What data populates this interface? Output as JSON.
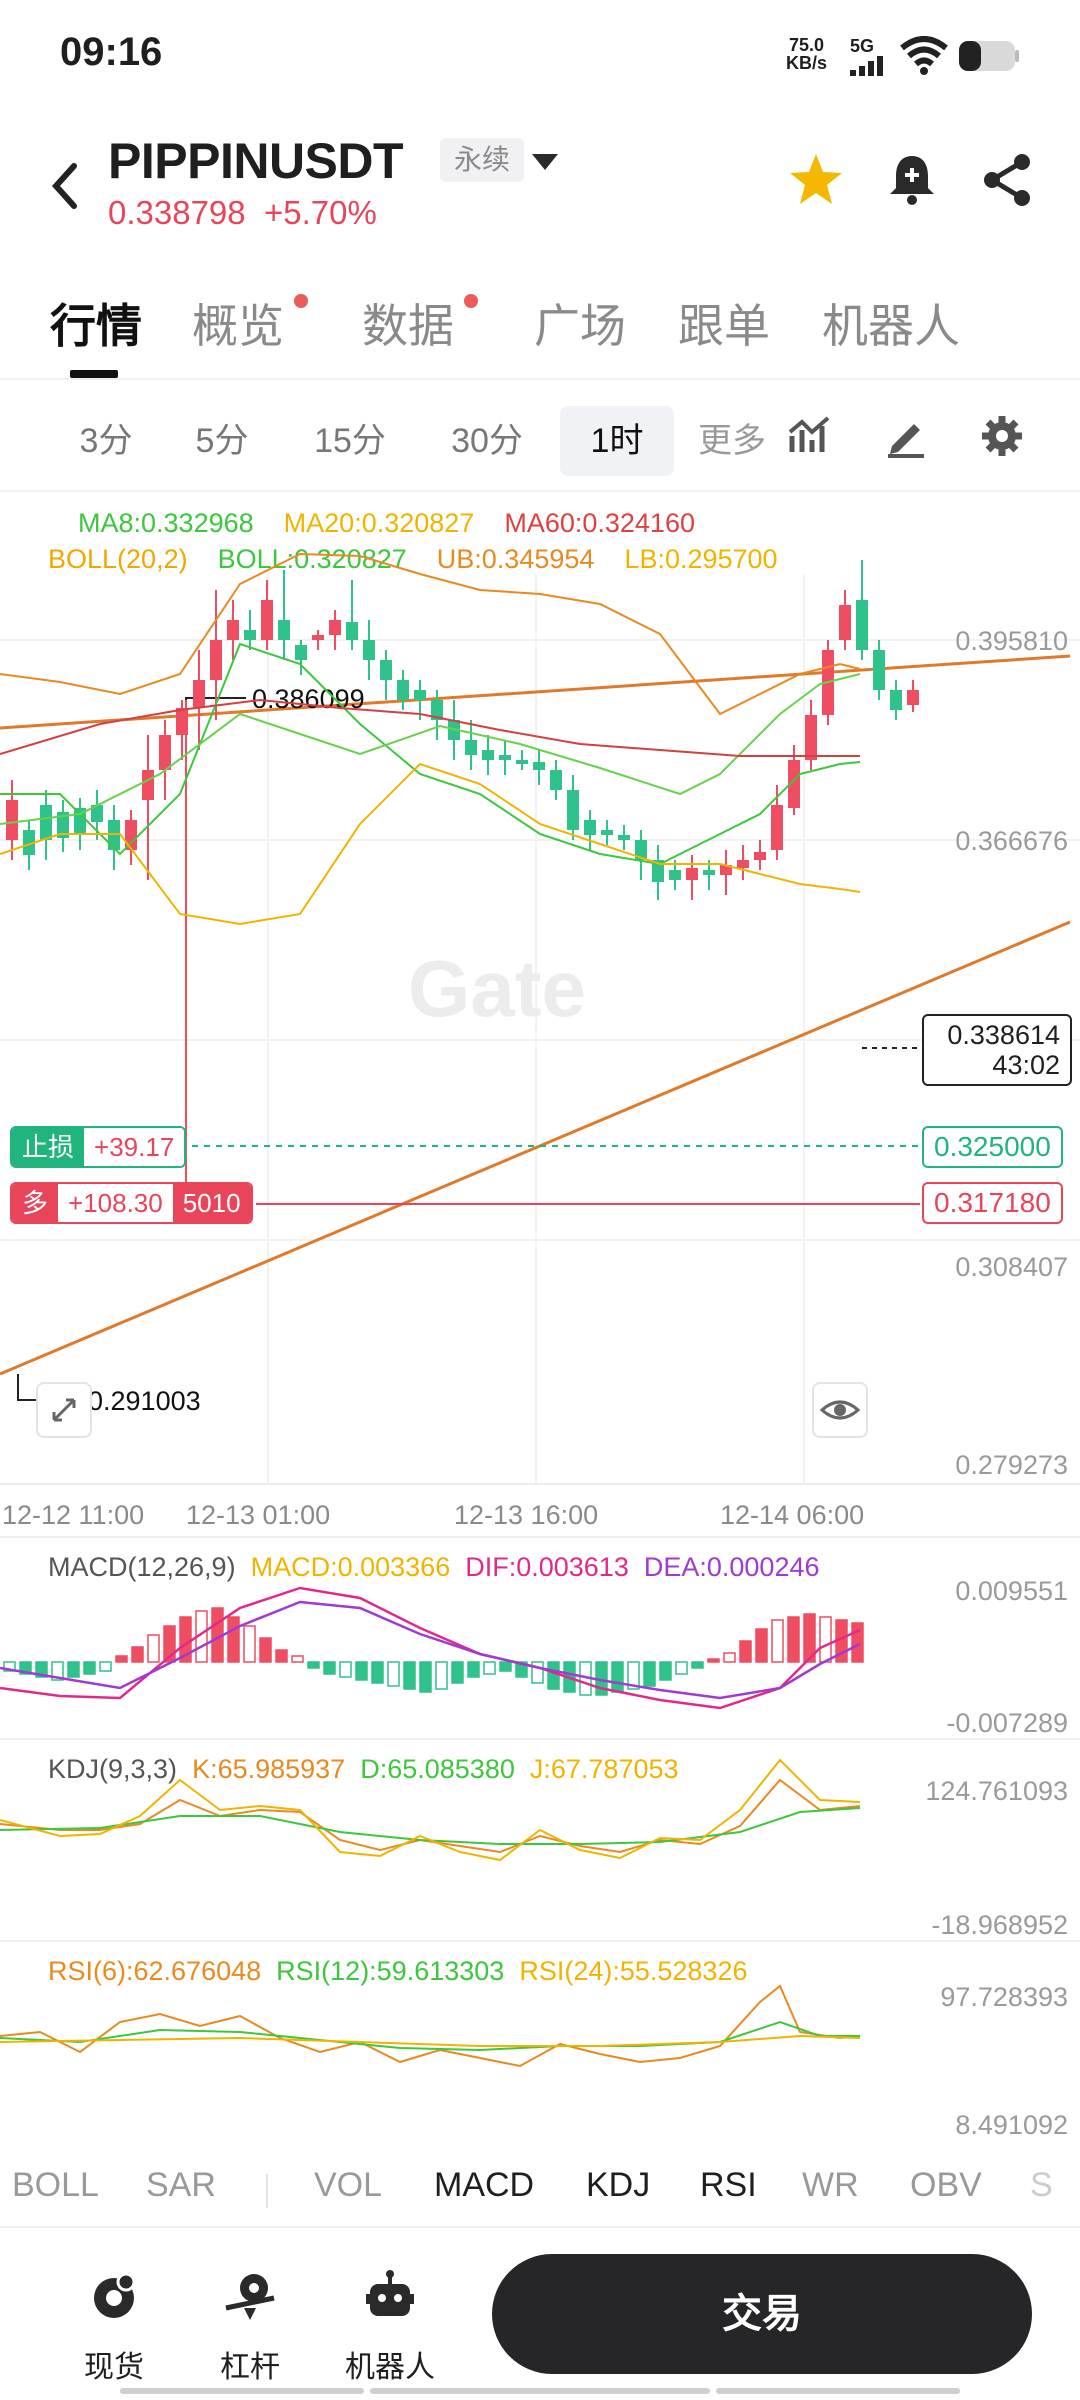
{
  "status": {
    "time": "09:16",
    "speed_value": "75.0",
    "speed_unit": "KB/s",
    "network": "5G"
  },
  "header": {
    "symbol": "PIPPINUSDT",
    "contract_type": "永续",
    "last_price": "0.338798",
    "change_percent": "+5.70%",
    "colors": {
      "up": "#e8455a",
      "down": "#20b57c",
      "star": "#f5b800"
    }
  },
  "tabs": [
    {
      "label": "行情",
      "active": true,
      "badge": false
    },
    {
      "label": "概览",
      "active": false,
      "badge": true
    },
    {
      "label": "数据",
      "active": false,
      "badge": true
    },
    {
      "label": "广场",
      "active": false,
      "badge": false
    },
    {
      "label": "跟单",
      "active": false,
      "badge": false
    },
    {
      "label": "机器人",
      "active": false,
      "badge": false
    }
  ],
  "timeframes": [
    {
      "label": "3分",
      "active": false
    },
    {
      "label": "5分",
      "active": false
    },
    {
      "label": "15分",
      "active": false
    },
    {
      "label": "30分",
      "active": false
    },
    {
      "label": "1时",
      "active": true
    },
    {
      "label": "更多",
      "active": false
    }
  ],
  "main_legend": {
    "ma8": "MA8:0.332968",
    "ma20": "MA20:0.320827",
    "ma60": "MA60:0.324160",
    "boll_name": "BOLL(20,2)",
    "boll": "BOLL:0.320827",
    "ub": "UB:0.345954",
    "lb": "LB:0.295700"
  },
  "price_axis": [
    "0.395810",
    "0.366676",
    "0.308407",
    "0.279273"
  ],
  "high_label": "0.386099",
  "low_label": "0.291003",
  "time_axis": [
    "12-12 11:00",
    "12-13 01:00",
    "12-13 16:00",
    "12-14 06:00"
  ],
  "current_price_box": {
    "price": "0.338614",
    "countdown": "43:02"
  },
  "stop_loss": {
    "label": "止损",
    "pnl": "+39.17",
    "price": "0.325000"
  },
  "long_position": {
    "label": "多",
    "pnl": "+108.30",
    "size": "5010",
    "price": "0.317180"
  },
  "watermark": "Gate",
  "macd": {
    "name": "MACD(12,26,9)",
    "macd": "MACD:0.003366",
    "dif": "DIF:0.003613",
    "dea": "DEA:0.000246",
    "axis_top": "0.009551",
    "axis_bottom": "-0.007289"
  },
  "kdj": {
    "name": "KDJ(9,3,3)",
    "k": "K:65.985937",
    "d": "D:65.085380",
    "j": "J:67.787053",
    "axis_top": "124.761093",
    "axis_bottom": "-18.968952"
  },
  "rsi": {
    "rsi6": "RSI(6):62.676048",
    "rsi12": "RSI(12):59.613303",
    "rsi24": "RSI(24):55.528326",
    "axis_top": "97.728393",
    "axis_bottom": "8.491092"
  },
  "indicator_tabs": [
    {
      "label": "BOLL",
      "active": false
    },
    {
      "label": "SAR",
      "active": false
    },
    {
      "label": "VOL",
      "active": false
    },
    {
      "label": "MACD",
      "active": true
    },
    {
      "label": "KDJ",
      "active": true
    },
    {
      "label": "RSI",
      "active": true
    },
    {
      "label": "WR",
      "active": false
    },
    {
      "label": "OBV",
      "active": false
    },
    {
      "label": "S",
      "active": false
    }
  ],
  "bottom_nav": [
    {
      "label": "现货",
      "icon": "spot-icon"
    },
    {
      "label": "杠杆",
      "icon": "leverage-icon"
    },
    {
      "label": "机器人",
      "icon": "robot-icon"
    }
  ],
  "trade_button": "交易"
}
